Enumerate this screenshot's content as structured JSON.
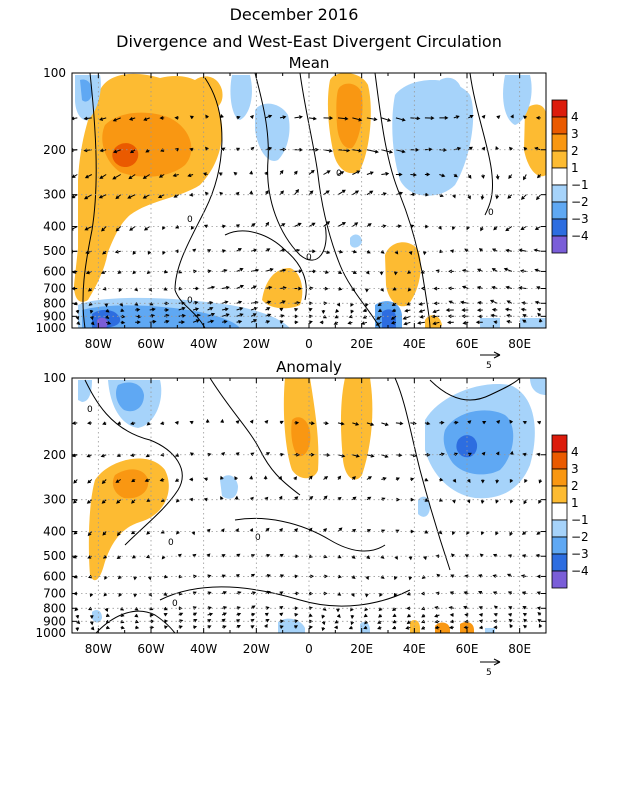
{
  "figure": {
    "title": "December 2016",
    "subtitle": "Divergence and West-East Divergent Circulation"
  },
  "colors": {
    "pos1": "#fdbb32",
    "pos2": "#f99712",
    "pos3": "#ea5a00",
    "pos4": "#dc1c0c",
    "neg1": "#a6d3fa",
    "neg2": "#5fa8f3",
    "neg3": "#2d6de0",
    "neg4": "#7a5ed8"
  },
  "chart_data": [
    {
      "type": "heatmap",
      "title": "Mean",
      "x_ticks": [
        "80W",
        "60W",
        "40W",
        "20W",
        "0",
        "20E",
        "40E",
        "60E",
        "80E"
      ],
      "x_values": [
        -80,
        -60,
        -40,
        -20,
        0,
        20,
        40,
        60,
        80
      ],
      "xlim": [
        -90,
        90
      ],
      "y_ticks": [
        "100",
        "200",
        "300",
        "400",
        "500",
        "600",
        "700",
        "800",
        "900",
        "1000"
      ],
      "y_values": [
        100,
        200,
        300,
        400,
        500,
        600,
        700,
        800,
        900,
        1000
      ],
      "ylim": [
        1000,
        100
      ],
      "y_scale": "log",
      "grid": true,
      "colorbar": {
        "levels": [
          4,
          3,
          2,
          1,
          -1,
          -2,
          -3,
          -4
        ],
        "labels": [
          "4",
          "3",
          "2",
          "1",
          "−1",
          "−2",
          "−3",
          "−4"
        ],
        "placement": "right"
      },
      "contour_labels": [
        "0",
        "0",
        "0",
        "0",
        "0"
      ],
      "reference_vector": {
        "label": "5",
        "placement": "below-right"
      }
    },
    {
      "type": "heatmap",
      "title": "Anomaly",
      "x_ticks": [
        "80W",
        "60W",
        "40W",
        "20W",
        "0",
        "20E",
        "40E",
        "60E",
        "80E"
      ],
      "x_values": [
        -80,
        -60,
        -40,
        -20,
        0,
        20,
        40,
        60,
        80
      ],
      "xlim": [
        -90,
        90
      ],
      "y_ticks": [
        "100",
        "200",
        "300",
        "400",
        "500",
        "600",
        "700",
        "800",
        "900",
        "1000"
      ],
      "y_values": [
        100,
        200,
        300,
        400,
        500,
        600,
        700,
        800,
        900,
        1000
      ],
      "ylim": [
        1000,
        100
      ],
      "y_scale": "log",
      "grid": true,
      "colorbar": {
        "levels": [
          4,
          3,
          2,
          1,
          -1,
          -2,
          -3,
          -4
        ],
        "labels": [
          "4",
          "3",
          "2",
          "1",
          "−1",
          "−2",
          "−3",
          "−4"
        ],
        "placement": "right"
      },
      "contour_labels": [
        "0",
        "0",
        "0",
        "0"
      ],
      "reference_vector": {
        "label": "5",
        "placement": "below-right"
      }
    }
  ]
}
